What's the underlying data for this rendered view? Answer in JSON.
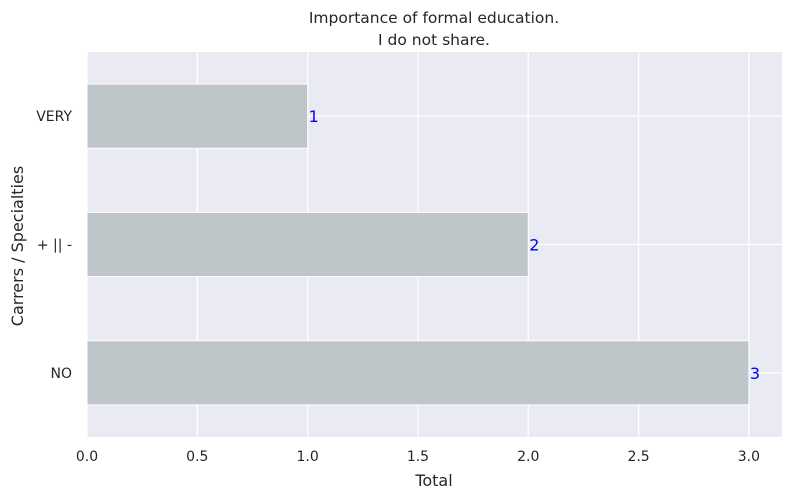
{
  "chart_data": {
    "type": "bar",
    "orientation": "horizontal",
    "title_line1": "Importance of formal education.",
    "title_line2": "I do not share.",
    "xlabel": "Total",
    "ylabel": "Carrers / Specialties",
    "categories": [
      "VERY",
      "+ || -",
      "NO"
    ],
    "values": [
      1,
      2,
      3
    ],
    "data_labels": [
      "1",
      "2",
      "3"
    ],
    "xlim": [
      0,
      3.15
    ],
    "xticks": [
      0.0,
      0.5,
      1.0,
      1.5,
      2.0,
      2.5,
      3.0
    ],
    "xtick_labels": [
      "0.0",
      "0.5",
      "1.0",
      "1.5",
      "2.0",
      "2.5",
      "3.0"
    ],
    "grid": true,
    "colors": {
      "bar": "#bec6c9",
      "plot_background": "#eaeaf2",
      "grid": "#ffffff",
      "data_label": "#0000ff",
      "text": "#262626"
    }
  }
}
